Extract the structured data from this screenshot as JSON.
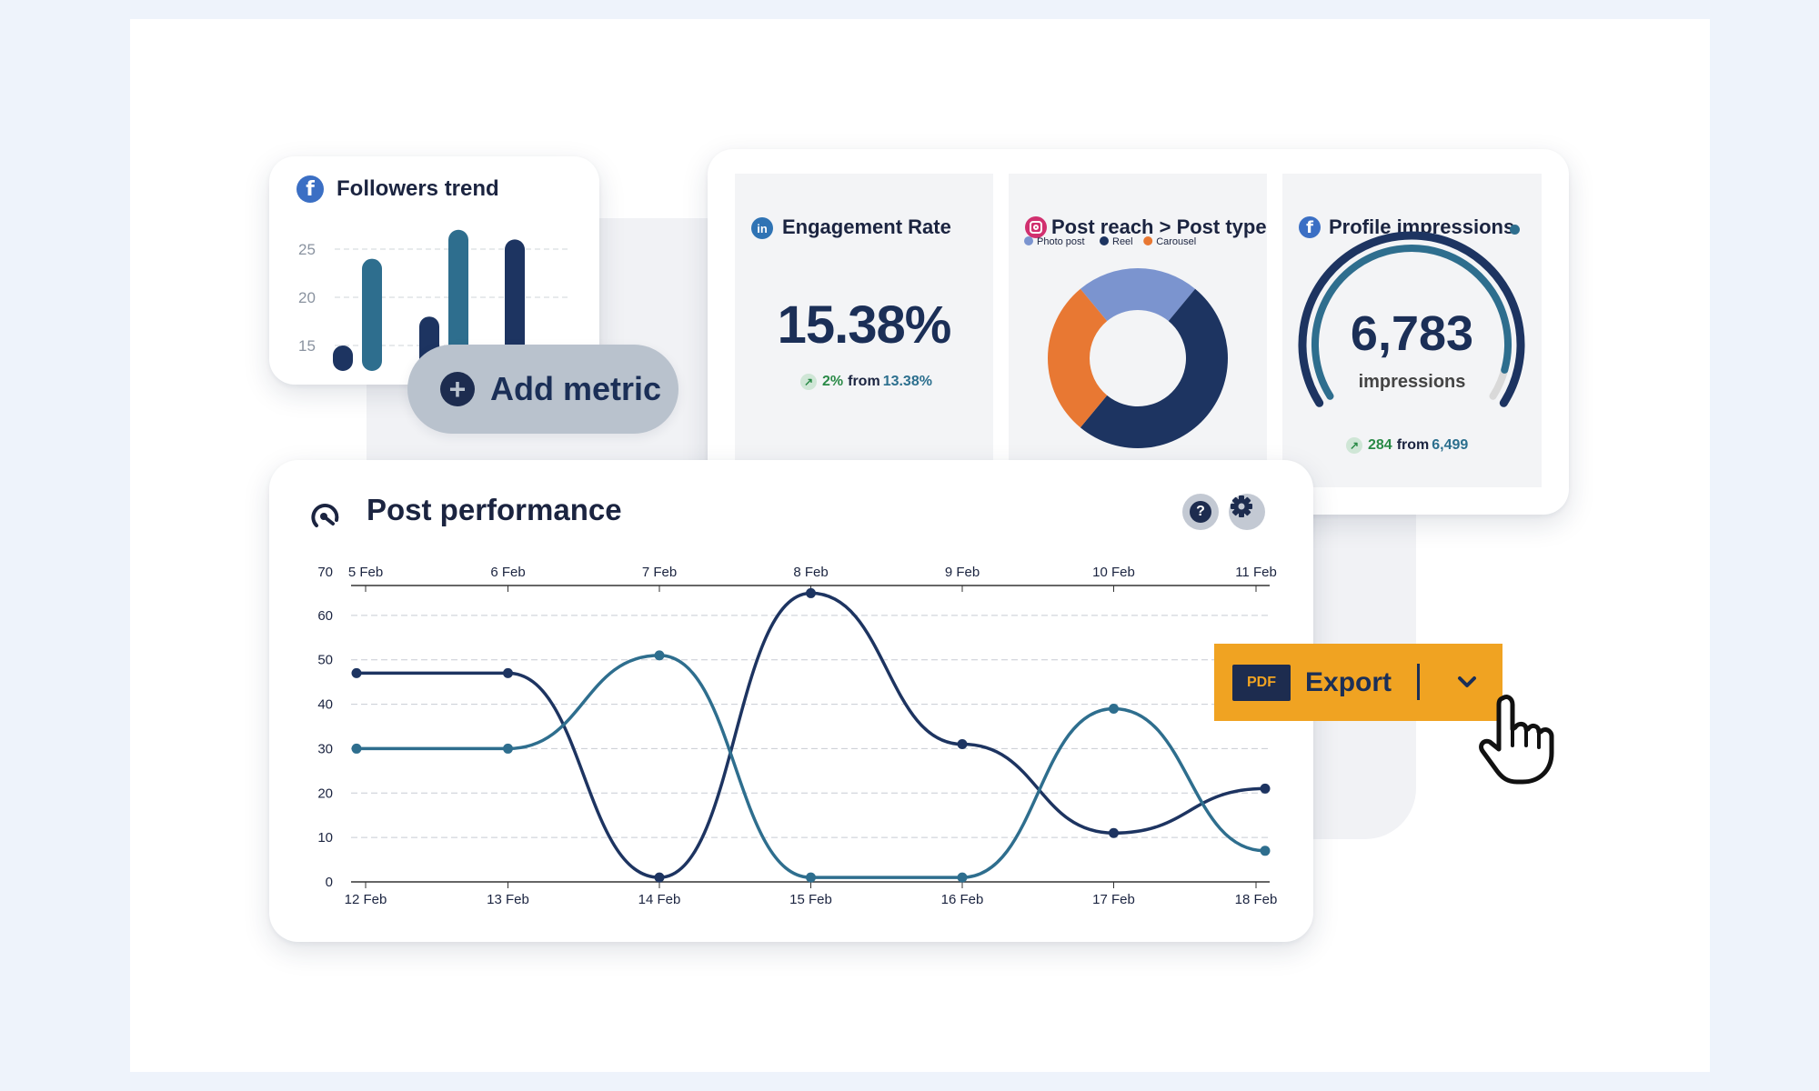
{
  "followers_card": {
    "title": "Followers trend",
    "icon": "facebook-icon",
    "chart_data": {
      "type": "bar",
      "series": [
        {
          "color": "#1d3461",
          "values": [
            15,
            18,
            26
          ]
        },
        {
          "color": "#2e6e8e",
          "values": [
            24,
            27
          ]
        }
      ],
      "bar_order": [
        {
          "series": 0,
          "value": 15
        },
        {
          "series": 1,
          "value": 24
        },
        {
          "series": 0,
          "value": 18
        },
        {
          "series": 1,
          "value": 27
        },
        {
          "series": 0,
          "value": 26
        }
      ],
      "y_ticks": [
        15,
        20,
        25
      ],
      "ylim": [
        10,
        28
      ]
    }
  },
  "add_metric": {
    "label": "Add metric"
  },
  "engagement": {
    "title": "Engagement Rate",
    "icon": "linkedin-icon",
    "value": "15.38%",
    "delta": "2%",
    "from_label": "from",
    "previous": "13.38%"
  },
  "post_reach": {
    "title": "Post reach > Post type",
    "icon": "instagram-icon",
    "chart_data": {
      "type": "pie",
      "labels": [
        "Photo post",
        "Reel",
        "Carousel"
      ],
      "values": [
        22,
        50,
        28
      ],
      "colors": [
        "#7b94cf",
        "#1d3461",
        "#e87833"
      ]
    }
  },
  "impressions": {
    "title": "Profile impressions",
    "icon": "facebook-icon",
    "value": "6,783",
    "unit": "impressions",
    "delta": "284",
    "from_label": "from",
    "previous": "6,499",
    "gauge_fraction": 0.93
  },
  "post_performance": {
    "title": "Post performance",
    "icon": "gauge-icon",
    "chart_data": {
      "type": "line",
      "x_bottom": [
        "12 Feb",
        "13 Feb",
        "14 Feb",
        "15 Feb",
        "16 Feb",
        "17 Feb",
        "18 Feb"
      ],
      "x_top": [
        "5 Feb",
        "6 Feb",
        "7 Feb",
        "8 Feb",
        "9 Feb",
        "10 Feb",
        "11 Feb"
      ],
      "y_ticks": [
        0,
        10,
        20,
        30,
        40,
        50,
        60,
        70
      ],
      "ylim": [
        0,
        70
      ],
      "series": [
        {
          "color": "#1d3461",
          "values": [
            47,
            47,
            1,
            65,
            31,
            11,
            21
          ]
        },
        {
          "color": "#2e6e8e",
          "values": [
            30,
            30,
            51,
            1,
            1,
            39,
            7
          ]
        }
      ]
    }
  },
  "export": {
    "badge": "PDF",
    "label": "Export"
  },
  "colors": {
    "accent_orange": "#f0a322",
    "navy": "#1d3461",
    "teal": "#2e6e8e",
    "positive": "#2a8a47"
  }
}
